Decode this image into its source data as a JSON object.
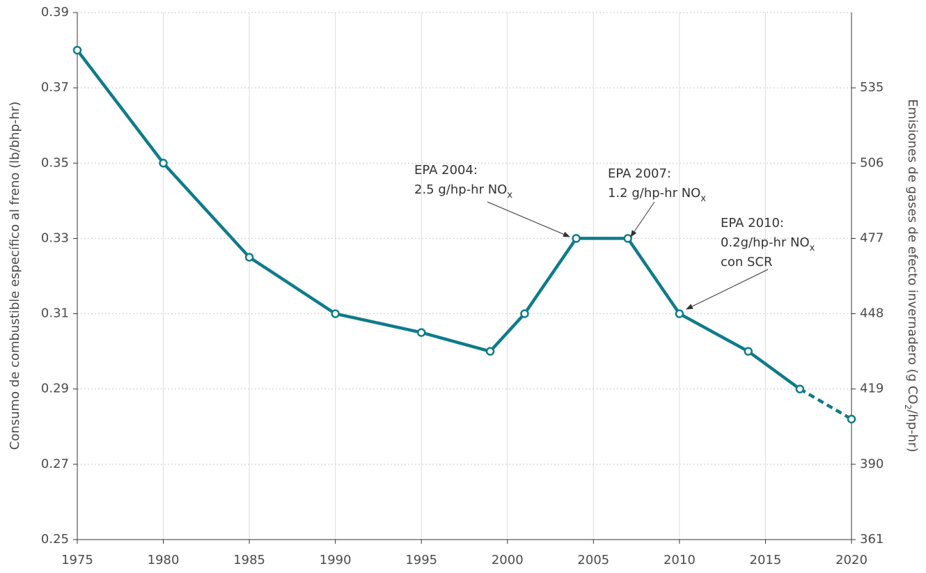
{
  "chart_data": {
    "type": "line",
    "ylabel": "Consumo de combustible específico al freno (lb/bhp-hr)",
    "y2label_parts": [
      "Emisiones de gases de efecto invernadero (g CO",
      "2",
      "/hp-hr)"
    ],
    "x": [
      1975,
      1980,
      1985,
      1990,
      1995,
      1999,
      2001,
      2004,
      2007,
      2010,
      2014,
      2017,
      2020
    ],
    "series": [
      {
        "color": "#0f7b8b",
        "values": [
          0.38,
          0.35,
          0.325,
          0.31,
          0.305,
          0.3,
          0.31,
          0.33,
          0.33,
          0.31,
          0.3,
          0.29,
          0.282
        ]
      }
    ],
    "projection_start": 2017,
    "xlim": [
      1975,
      2020
    ],
    "xticks": [
      1975,
      1980,
      1985,
      1990,
      1995,
      2000,
      2005,
      2010,
      2015,
      2020
    ],
    "ylim": [
      0.25,
      0.39
    ],
    "yticks": [
      0.25,
      0.27,
      0.29,
      0.31,
      0.33,
      0.35,
      0.37,
      0.39
    ],
    "y2lim": [
      361,
      564
    ],
    "y2ticks": [
      361,
      390,
      419,
      448,
      477,
      506,
      535
    ],
    "grid": true,
    "annotations": [
      {
        "lines": [
          "EPA 2004:",
          "2.5 g/hp-hr NO"
        ],
        "subscript": "x"
      },
      {
        "lines": [
          "EPA 2007:",
          "1.2 g/hp-hr NO"
        ],
        "subscript": "x"
      },
      {
        "lines": [
          "EPA 2010:",
          "0.2g/hp-hr NO",
          "con SCR"
        ],
        "subscript": "x"
      }
    ]
  }
}
